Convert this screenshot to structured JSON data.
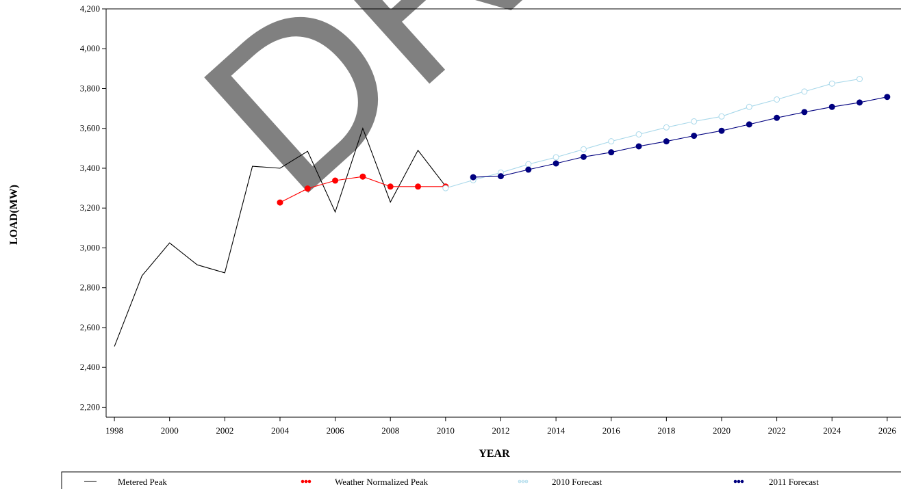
{
  "chart_data": {
    "type": "line",
    "title": "",
    "xlabel": "YEAR",
    "ylabel": "LOAD(MW)",
    "xlim": [
      1997.7,
      2026.5
    ],
    "ylim": [
      2150,
      4200
    ],
    "x_ticks": [
      1998,
      2000,
      2002,
      2004,
      2006,
      2008,
      2010,
      2012,
      2014,
      2016,
      2018,
      2020,
      2022,
      2024,
      2026
    ],
    "y_ticks": [
      2200,
      2400,
      2600,
      2800,
      3000,
      3200,
      3400,
      3600,
      3800,
      4000,
      4200
    ],
    "y_tick_labels": [
      "2,200",
      "2,400",
      "2,600",
      "2,800",
      "3,000",
      "3,200",
      "3,400",
      "3,600",
      "3,800",
      "4,000",
      "4,200"
    ],
    "grid": false,
    "legend_placement": "bottom",
    "watermark": "DRAFT",
    "series": [
      {
        "name": "Metered Peak",
        "color": "#000000",
        "marker": "none",
        "x": [
          1998,
          1999,
          2000,
          2001,
          2002,
          2003,
          2004,
          2005,
          2006,
          2007,
          2008,
          2009,
          2010
        ],
        "y": [
          2505,
          2860,
          3025,
          2915,
          2875,
          3410,
          3400,
          3485,
          3180,
          3600,
          3230,
          3490,
          3310
        ]
      },
      {
        "name": "Weather Normalized Peak",
        "color": "#ff0000",
        "marker": "filled-circle",
        "x": [
          2004,
          2005,
          2006,
          2007,
          2008,
          2009,
          2010
        ],
        "y": [
          3228,
          3298,
          3338,
          3358,
          3308,
          3308,
          3308
        ]
      },
      {
        "name": "2010 Forecast",
        "color": "#a8d8ea",
        "marker": "open-circle",
        "x": [
          2010,
          2011,
          2012,
          2013,
          2014,
          2015,
          2016,
          2017,
          2018,
          2019,
          2020,
          2021,
          2022,
          2023,
          2024,
          2025
        ],
        "y": [
          3300,
          3340,
          3378,
          3420,
          3455,
          3495,
          3535,
          3570,
          3605,
          3635,
          3660,
          3708,
          3745,
          3785,
          3825,
          3848
        ]
      },
      {
        "name": "2011 Forecast",
        "color": "#00007f",
        "marker": "filled-circle",
        "x": [
          2011,
          2012,
          2013,
          2014,
          2015,
          2016,
          2017,
          2018,
          2019,
          2020,
          2021,
          2022,
          2023,
          2024,
          2025,
          2026
        ],
        "y": [
          3355,
          3360,
          3393,
          3424,
          3457,
          3480,
          3510,
          3535,
          3563,
          3588,
          3620,
          3653,
          3682,
          3708,
          3730,
          3758
        ]
      }
    ]
  }
}
